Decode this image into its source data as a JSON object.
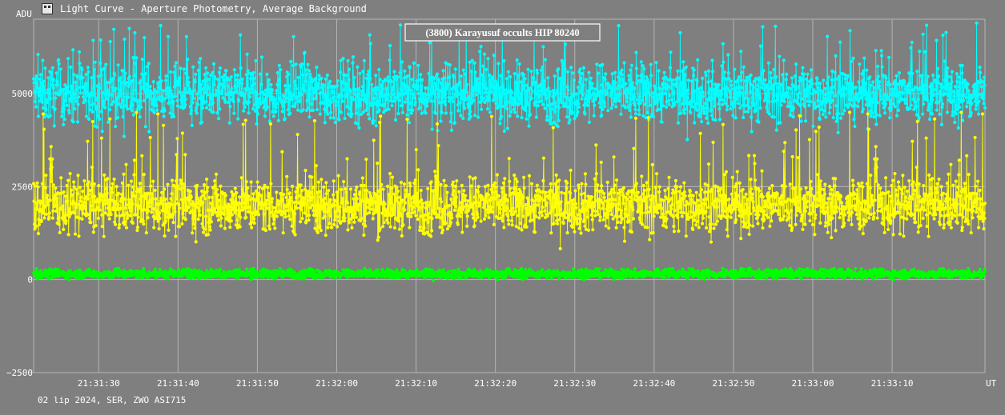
{
  "window": {
    "title": "Light Curve - Aperture Photometry, Average Background",
    "icon": "light-curve-app-icon"
  },
  "footer": {
    "info": "02 lip 2024, SER, ZWO ASI715"
  },
  "colors": {
    "background": "#7f7f7f",
    "grid": "#b4b4b4",
    "text": "#ffffff",
    "target": "#ffff00",
    "comparison": "#00ffff",
    "background_series": "#00ff00"
  },
  "chart_data": {
    "type": "line",
    "title": "(3800) Karayusuf occults HIP 80240",
    "ylabel": "ADU",
    "xlabel": "UT",
    "ylim": [
      -2500,
      7000
    ],
    "yticks": [
      5000,
      2500,
      0,
      -2500
    ],
    "ytick_labels": [
      "5000",
      "2500",
      "0",
      "−2500"
    ],
    "xlim": [
      "21:31:21.8",
      "21:33:21.7"
    ],
    "xticks": [
      "21:31:30",
      "21:31:40",
      "21:31:50",
      "21:32:00",
      "21:32:10",
      "21:32:20",
      "21:32:30",
      "21:32:40",
      "21:32:50",
      "21:33:00",
      "21:33:10"
    ],
    "grid": true,
    "markers": true,
    "frames": 2400,
    "series": [
      {
        "key": "comparison",
        "color": "#00ffff",
        "mean": 5000,
        "noise": 550,
        "spike_max": 1900,
        "points_per_second": 20
      },
      {
        "key": "target",
        "color": "#ffff00",
        "mean": 2000,
        "noise": 520,
        "spike_max": 2500,
        "points_per_second": 20
      },
      {
        "key": "background",
        "color": "#00ff00",
        "mean": 150,
        "noise": 80,
        "spike_max": 150,
        "points_per_second": 20
      }
    ]
  }
}
